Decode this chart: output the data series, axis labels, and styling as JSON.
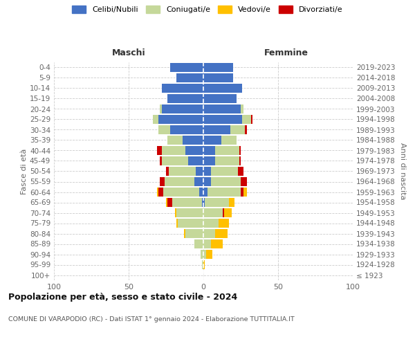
{
  "age_groups": [
    "100+",
    "95-99",
    "90-94",
    "85-89",
    "80-84",
    "75-79",
    "70-74",
    "65-69",
    "60-64",
    "55-59",
    "50-54",
    "45-49",
    "40-44",
    "35-39",
    "30-34",
    "25-29",
    "20-24",
    "15-19",
    "10-14",
    "5-9",
    "0-4"
  ],
  "birth_years": [
    "≤ 1923",
    "1924-1928",
    "1929-1933",
    "1934-1938",
    "1939-1943",
    "1944-1948",
    "1949-1953",
    "1954-1958",
    "1959-1963",
    "1964-1968",
    "1969-1973",
    "1974-1978",
    "1979-1983",
    "1984-1988",
    "1989-1993",
    "1994-1998",
    "1999-2003",
    "2004-2008",
    "2009-2013",
    "2014-2018",
    "2019-2023"
  ],
  "males": {
    "celibi": [
      0,
      0,
      0,
      0,
      0,
      0,
      0,
      1,
      3,
      6,
      5,
      10,
      12,
      14,
      22,
      30,
      28,
      24,
      28,
      18,
      22
    ],
    "coniugati": [
      0,
      1,
      2,
      6,
      12,
      17,
      18,
      20,
      24,
      20,
      18,
      18,
      16,
      10,
      8,
      4,
      1,
      0,
      0,
      0,
      0
    ],
    "vedovi": [
      0,
      0,
      0,
      0,
      1,
      1,
      1,
      1,
      1,
      0,
      0,
      0,
      0,
      0,
      0,
      0,
      0,
      0,
      0,
      0,
      0
    ],
    "divorziati": [
      0,
      0,
      0,
      0,
      0,
      0,
      0,
      3,
      3,
      3,
      2,
      1,
      3,
      0,
      0,
      0,
      0,
      0,
      0,
      0,
      0
    ]
  },
  "females": {
    "nubili": [
      0,
      0,
      0,
      0,
      0,
      0,
      0,
      1,
      3,
      5,
      5,
      8,
      8,
      12,
      18,
      26,
      25,
      22,
      26,
      20,
      20
    ],
    "coniugate": [
      0,
      0,
      2,
      5,
      8,
      10,
      13,
      16,
      22,
      20,
      18,
      16,
      16,
      10,
      10,
      6,
      2,
      0,
      0,
      0,
      0
    ],
    "vedove": [
      0,
      1,
      4,
      8,
      8,
      7,
      5,
      4,
      2,
      0,
      0,
      0,
      0,
      0,
      0,
      0,
      0,
      0,
      0,
      0,
      0
    ],
    "divorziate": [
      0,
      0,
      0,
      0,
      0,
      0,
      1,
      0,
      2,
      4,
      4,
      1,
      1,
      0,
      1,
      1,
      0,
      0,
      0,
      0,
      0
    ]
  },
  "colors": {
    "celibi": "#4472C4",
    "coniugati": "#c5d89a",
    "vedovi": "#ffc000",
    "divorziati": "#cc0000"
  },
  "xlim": 100,
  "title": "Popolazione per età, sesso e stato civile - 2024",
  "subtitle": "COMUNE DI VARAPODIO (RC) - Dati ISTAT 1° gennaio 2024 - Elaborazione TUTTITALIA.IT",
  "xlabel_left": "Maschi",
  "xlabel_right": "Femmine",
  "ylabel": "Fasce di età",
  "ylabel_right": "Anni di nascita",
  "bg_color": "#ffffff",
  "grid_color": "#cccccc"
}
